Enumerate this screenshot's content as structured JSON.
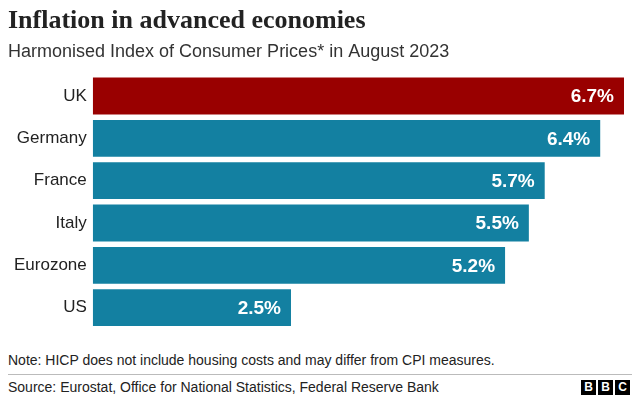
{
  "chart_data": {
    "type": "bar",
    "orientation": "horizontal",
    "title": "Inflation in advanced economies",
    "subtitle": "Harmonised Index of Consumer Prices* in August 2023",
    "categories": [
      "UK",
      "Germany",
      "France",
      "Italy",
      "Eurozone",
      "US"
    ],
    "values": [
      6.7,
      6.4,
      5.7,
      5.5,
      5.2,
      2.5
    ],
    "value_labels": [
      "6.7%",
      "6.4%",
      "5.7%",
      "5.5%",
      "5.2%",
      "2.5%"
    ],
    "colors": [
      "#990000",
      "#1380a1",
      "#1380a1",
      "#1380a1",
      "#1380a1",
      "#1380a1"
    ],
    "xlim": [
      0,
      6.7
    ],
    "grid": false,
    "tick_labels": "y",
    "data_labels": true,
    "note": "Note: HICP does not include housing costs and may differ from CPI measures.",
    "source": "Source: Eurostat, Office for National Statistics, Federal Reserve Bank",
    "logo": "BBC"
  }
}
